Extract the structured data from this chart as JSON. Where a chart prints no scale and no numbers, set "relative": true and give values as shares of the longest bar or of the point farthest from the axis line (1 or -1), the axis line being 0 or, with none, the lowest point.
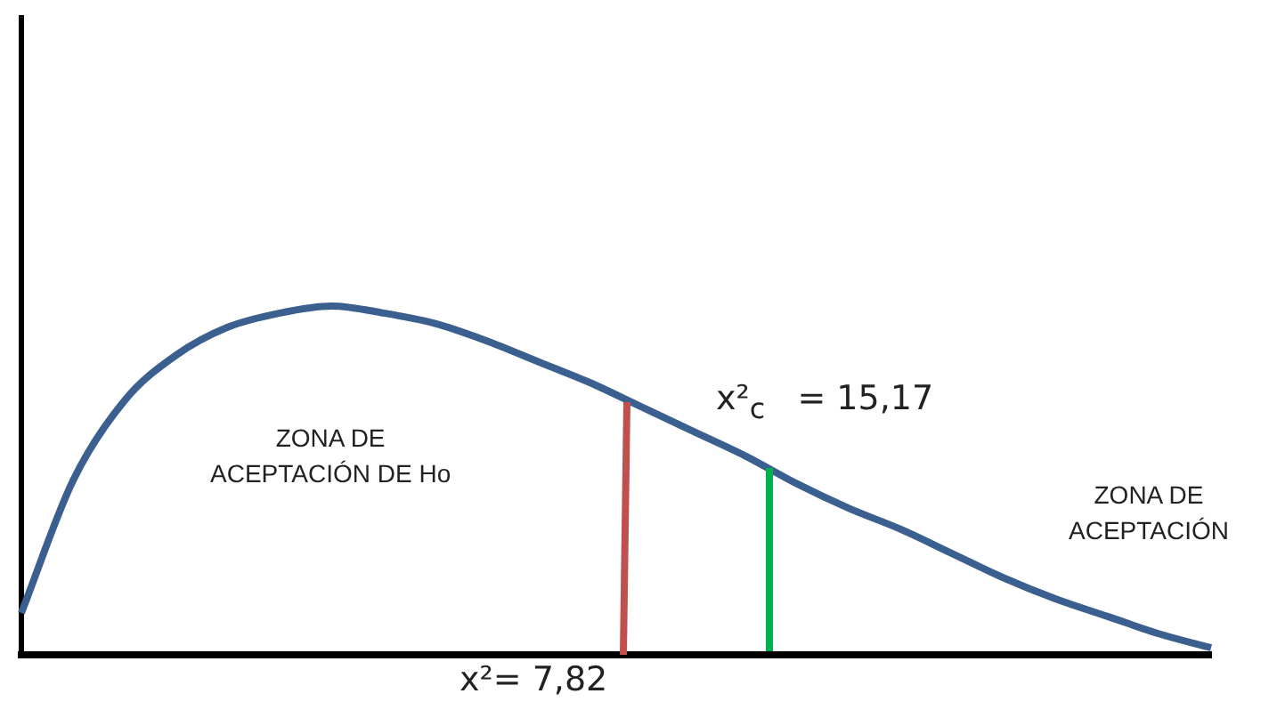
{
  "chart_data": {
    "type": "line",
    "relative": true,
    "grid": false,
    "legend": false,
    "marker": "none",
    "line_style": "solid",
    "categories": [
      null,
      null,
      null,
      null,
      null,
      null,
      null,
      null,
      null,
      null,
      null,
      null,
      null,
      null,
      null,
      null,
      null,
      null,
      null,
      null,
      null,
      null,
      null,
      null
    ],
    "series": [
      {
        "color": "#3b5f8f",
        "values": [
          0.12,
          0.5,
          0.73,
          0.86,
          0.94,
          0.98,
          1.0,
          0.98,
          0.95,
          0.9,
          0.84,
          0.78,
          0.71,
          0.64,
          0.57,
          0.49,
          0.42,
          0.36,
          0.29,
          0.22,
          0.16,
          0.11,
          0.06,
          0.02
        ]
      }
    ],
    "annotations": [
      "ZONA DE\nACEPTACIÓN DE Ho",
      "ZONA DE\nACEPTACIÓN",
      "x²= 7,82",
      "x²$_{c}$   = 15,17"
    ]
  }
}
